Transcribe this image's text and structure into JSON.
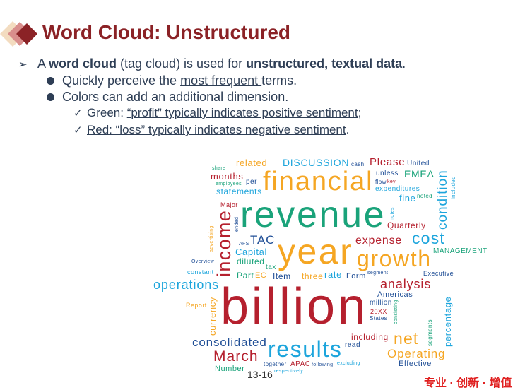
{
  "title": "Word Cloud: Unstructured",
  "bullets": {
    "main": {
      "p1": "A ",
      "b1": "word cloud",
      "p2": " (tag cloud) is used for ",
      "b2": "unstructured, textual data",
      "p3": "."
    },
    "sub1": {
      "p1": "Quickly perceive the ",
      "u1": "most frequent ",
      "p2": "terms."
    },
    "sub2": {
      "text": "Colors can add an additional dimension."
    },
    "check1": {
      "p1": "Green: ",
      "u1": "“profit” typically indicates positive sentiment",
      "p2": ";"
    },
    "check2": {
      "u1": "Red: “loss” typically indicates negative sentiment",
      "p2": "."
    }
  },
  "colors": {
    "green": "#1aa37a",
    "orange": "#f5a623",
    "red": "#b5202e",
    "lightblue": "#1da5dc",
    "darkblue": "#1f4e96",
    "title": "#8b2226"
  },
  "word_cloud": [
    {
      "text": "share",
      "color": "green"
    },
    {
      "text": "related",
      "color": "orange"
    },
    {
      "text": "DISCUSSION",
      "color": "lightblue"
    },
    {
      "text": "Please",
      "color": "red"
    },
    {
      "text": "United",
      "color": "darkblue"
    },
    {
      "text": "months",
      "color": "red"
    },
    {
      "text": "cash",
      "color": "darkblue"
    },
    {
      "text": "unless",
      "color": "darkblue"
    },
    {
      "text": "EMEA",
      "color": "green"
    },
    {
      "text": "condition",
      "color": "lightblue"
    },
    {
      "text": "included",
      "color": "lightblue"
    },
    {
      "text": "financial",
      "color": "orange"
    },
    {
      "text": "employees",
      "color": "green"
    },
    {
      "text": "per",
      "color": "darkblue"
    },
    {
      "text": "key",
      "color": "red"
    },
    {
      "text": "noted",
      "color": "green"
    },
    {
      "text": "income",
      "color": "red"
    },
    {
      "text": "statements",
      "color": "lightblue"
    },
    {
      "text": "flow",
      "color": "darkblue"
    },
    {
      "text": "expenditures",
      "color": "lightblue"
    },
    {
      "text": "fine",
      "color": "lightblue"
    },
    {
      "text": "revenue",
      "color": "green"
    },
    {
      "text": "ended",
      "color": "darkblue"
    },
    {
      "text": "notes",
      "color": "lightblue"
    },
    {
      "text": "advertising",
      "color": "orange"
    },
    {
      "text": "Major",
      "color": "red"
    },
    {
      "text": "TAC",
      "color": "darkblue"
    },
    {
      "text": "Quarterly",
      "color": "red"
    },
    {
      "text": "cost",
      "color": "lightblue"
    },
    {
      "text": "year",
      "color": "orange"
    },
    {
      "text": "AFS",
      "color": "darkblue"
    },
    {
      "text": "expense",
      "color": "red"
    },
    {
      "text": "Capital",
      "color": "lightblue"
    },
    {
      "text": "Overview",
      "color": "darkblue"
    },
    {
      "text": "MANAGEMENT",
      "color": "green"
    },
    {
      "text": "diluted",
      "color": "green"
    },
    {
      "text": "segment",
      "color": "darkblue"
    },
    {
      "text": "rate",
      "color": "lightblue"
    },
    {
      "text": "growth",
      "color": "orange"
    },
    {
      "text": "operations",
      "color": "lightblue"
    },
    {
      "text": "Executive",
      "color": "darkblue"
    },
    {
      "text": "EC",
      "color": "orange"
    },
    {
      "text": "constant",
      "color": "lightblue"
    },
    {
      "text": "million",
      "color": "darkblue"
    },
    {
      "text": "consisting",
      "color": "green"
    },
    {
      "text": "analysis",
      "color": "red"
    },
    {
      "text": "billion",
      "color": "red"
    },
    {
      "text": "Part",
      "color": "green"
    },
    {
      "text": "tax",
      "color": "green"
    },
    {
      "text": "Item",
      "color": "darkblue"
    },
    {
      "text": "Form",
      "color": "darkblue"
    },
    {
      "text": "Americas",
      "color": "darkblue"
    },
    {
      "text": "three",
      "color": "orange"
    },
    {
      "text": "currency",
      "color": "orange"
    },
    {
      "text": "Report",
      "color": "orange"
    },
    {
      "text": "percentage",
      "color": "lightblue"
    },
    {
      "text": "20XX",
      "color": "red"
    },
    {
      "text": "APAC",
      "color": "red"
    },
    {
      "text": "read",
      "color": "darkblue"
    },
    {
      "text": "together",
      "color": "darkblue"
    },
    {
      "text": "States",
      "color": "darkblue"
    },
    {
      "text": "segments'",
      "color": "green"
    },
    {
      "text": "including",
      "color": "red"
    },
    {
      "text": "consolidated",
      "color": "darkblue"
    },
    {
      "text": "net",
      "color": "orange"
    },
    {
      "text": "Number",
      "color": "green"
    },
    {
      "text": "results",
      "color": "lightblue"
    },
    {
      "text": "March",
      "color": "red"
    },
    {
      "text": "Operating",
      "color": "orange"
    },
    {
      "text": "respectively",
      "color": "lightblue"
    },
    {
      "text": "following",
      "color": "darkblue"
    },
    {
      "text": "excluding",
      "color": "lightblue"
    },
    {
      "text": "Effective",
      "color": "darkblue"
    }
  ],
  "footer": {
    "page_number": "13-16",
    "slogan": "专业 · 创新 · 增值"
  }
}
